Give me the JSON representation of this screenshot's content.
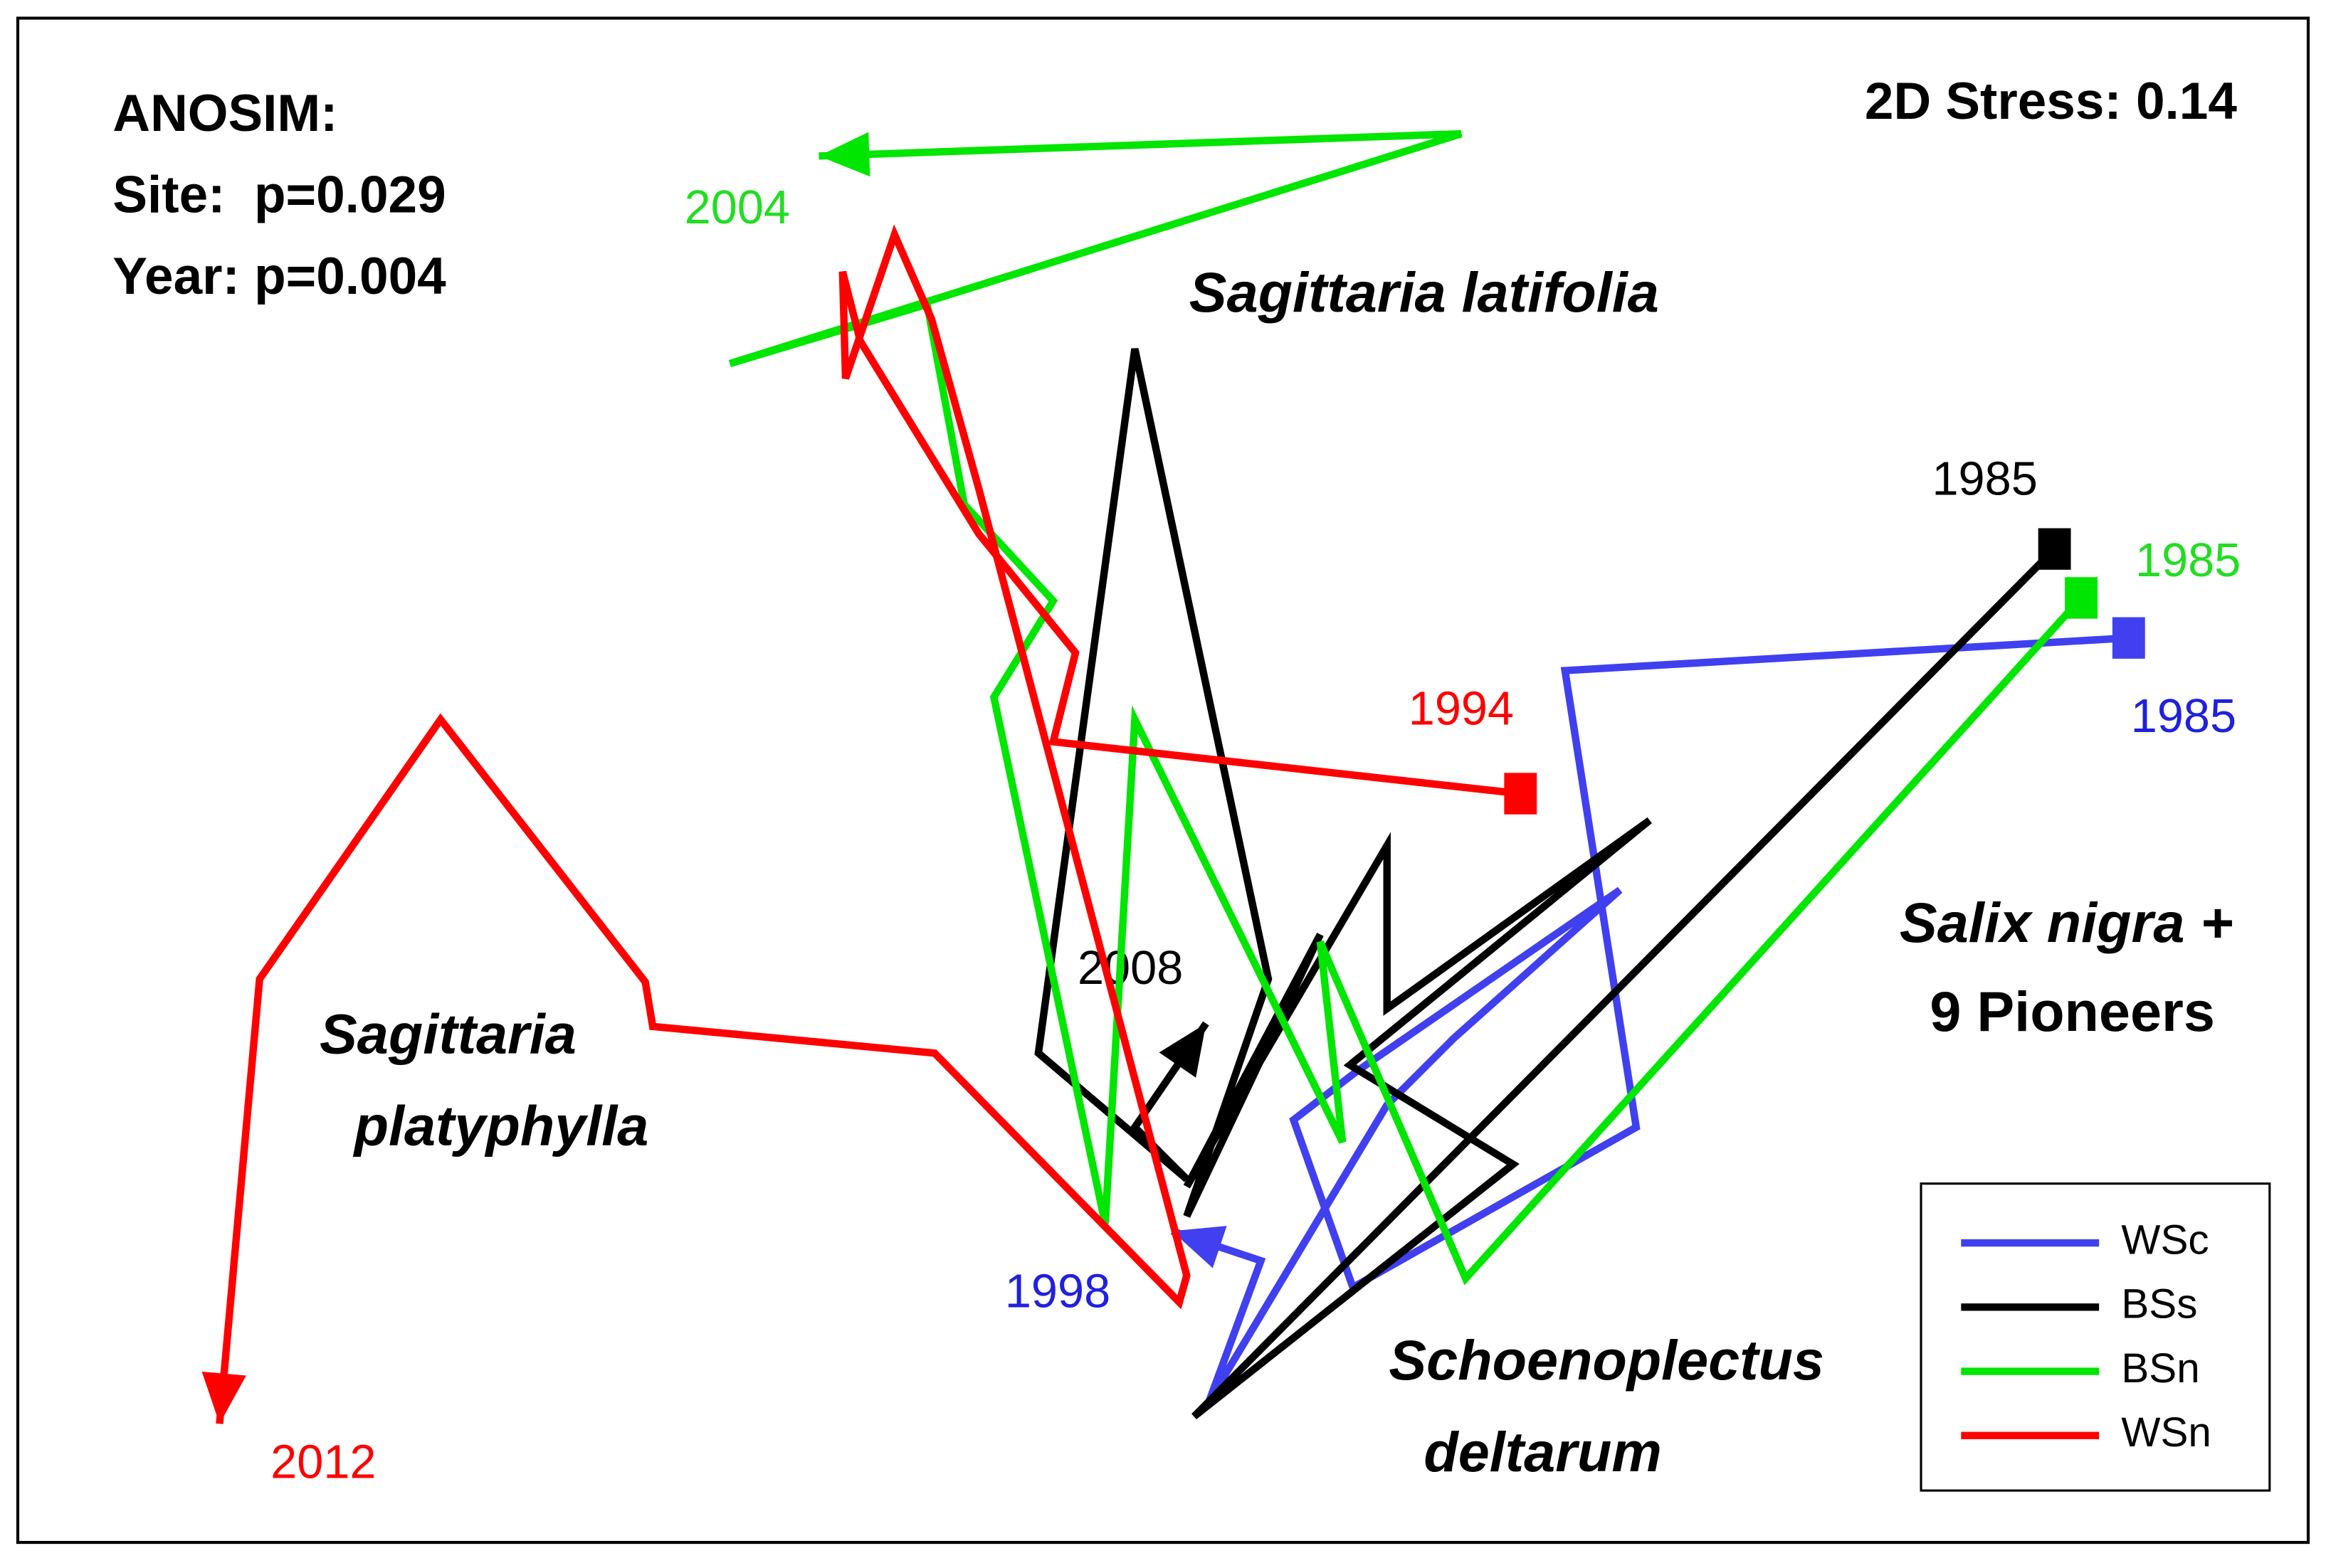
{
  "chart_data": {
    "type": "line",
    "xlim": [
      -7.72,
      7.72
    ],
    "ylim": [
      -5.14,
      5.14
    ],
    "grid": false,
    "legend": "lower right",
    "annotations": [
      "ANOSIM:",
      "Site:  p=0.029",
      "Year: p=0.004",
      "2D Stress: 0.14",
      "Sagittaria latifolia",
      "Sagittaria",
      "platyphylla",
      "Schoenoplectus",
      "deltarum",
      "Salix nigra +",
      "9 Pioneers"
    ],
    "series": [
      {
        "name": "WSc",
        "color": "#4040f0",
        "start_label": "1985",
        "end_label": "1998",
        "x": [
          6.51,
          2.71,
          3.19,
          1.28,
          0.88,
          1.31,
          3.08,
          1.96,
          1.51,
          0.31,
          0.66,
          0.06
        ],
        "values": [
          0.96,
          0.74,
          -2.34,
          -3.42,
          -2.29,
          -1.96,
          -0.74,
          -1.74,
          -2.19,
          -4.19,
          -3.24,
          -3.04
        ]
      },
      {
        "name": "BSs",
        "color": "#000000",
        "start_label": "1985",
        "end_label": "2008",
        "x": [
          6.01,
          0.21,
          2.36,
          1.26,
          3.28,
          1.51,
          1.51,
          0.16,
          1.06,
          0.16,
          0.71,
          -0.19,
          -0.84,
          0.16,
          -0.19,
          0.29
        ],
        "values": [
          1.56,
          -4.29,
          -2.59,
          -1.92,
          -0.27,
          -1.54,
          -0.44,
          -2.74,
          -1.04,
          -2.94,
          -1.34,
          2.91,
          -1.84,
          -2.69,
          -2.34,
          -1.64
        ]
      },
      {
        "name": "BSn",
        "color": "#00e600",
        "start_label": "1985",
        "end_label": "2004",
        "x": [
          6.19,
          2.04,
          1.06,
          1.21,
          -0.19,
          -0.39,
          -1.14,
          -0.74,
          -1.34,
          -1.59,
          -2.92,
          2.01,
          -2.32
        ],
        "values": [
          1.23,
          -3.36,
          -1.09,
          -2.44,
          0.41,
          -2.99,
          0.56,
          1.21,
          1.86,
          3.21,
          2.81,
          4.36,
          4.21
        ]
      },
      {
        "name": "WSn",
        "color": "#ff0000",
        "start_label": "1994",
        "end_label": "2012",
        "x": [
          2.41,
          -0.74,
          -0.59,
          -1.24,
          -2.04,
          -2.16,
          -2.14,
          -1.81,
          -1.56,
          -1.24,
          0.16,
          0.11,
          -1.54,
          -3.44,
          -3.49,
          -4.87,
          -6.09,
          -6.36
        ],
        "values": [
          -0.09,
          0.26,
          0.86,
          1.66,
          2.96,
          3.43,
          2.71,
          3.68,
          3.11,
          1.96,
          -3.34,
          -3.52,
          -1.84,
          -1.66,
          -1.36,
          0.41,
          -1.34,
          -4.34
        ]
      }
    ]
  }
}
